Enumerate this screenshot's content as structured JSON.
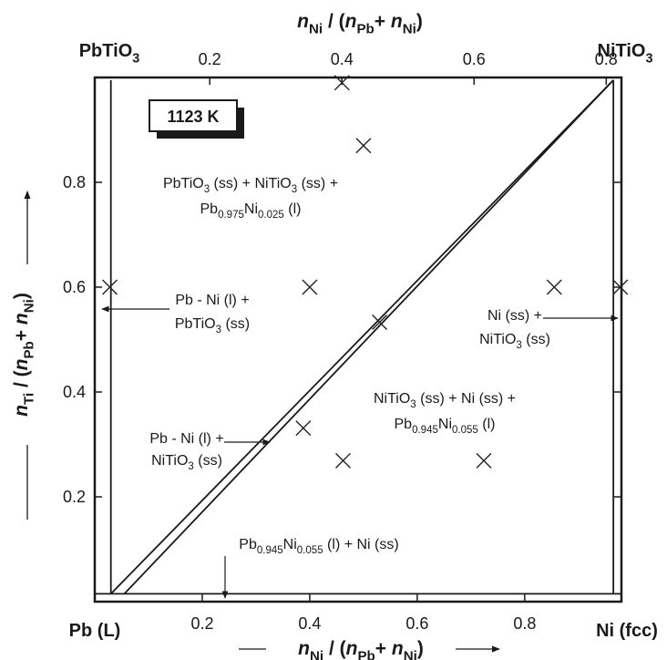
{
  "chart_data": {
    "type": "scatter",
    "xlabel": [
      {
        "text": "n",
        "italic": true
      },
      {
        "text": "Ni",
        "sub": true
      },
      {
        "text": " / ("
      },
      {
        "text": "n",
        "italic": true
      },
      {
        "text": "Pb",
        "sub": true
      },
      {
        "text": "+ "
      },
      {
        "text": "n",
        "italic": true
      },
      {
        "text": "Ni",
        "sub": true
      },
      {
        "text": ")"
      }
    ],
    "x2label": [
      {
        "text": "n",
        "italic": true
      },
      {
        "text": "Ni",
        "sub": true
      },
      {
        "text": " / ("
      },
      {
        "text": "n",
        "italic": true
      },
      {
        "text": "Pb",
        "sub": true
      },
      {
        "text": "+ "
      },
      {
        "text": "n",
        "italic": true
      },
      {
        "text": "Ni",
        "sub": true
      },
      {
        "text": ")"
      }
    ],
    "ylabel": [
      {
        "text": "n",
        "italic": true
      },
      {
        "text": "Ti",
        "sub": true
      },
      {
        "text": " / ("
      },
      {
        "text": "n",
        "italic": true
      },
      {
        "text": "Pb",
        "sub": true
      },
      {
        "text": "+ "
      },
      {
        "text": "n",
        "italic": true
      },
      {
        "text": "Ni",
        "sub": true
      },
      {
        "text": ")"
      }
    ],
    "corner_labels": [
      [
        {
          "text": "PbTiO"
        },
        {
          "text": "3",
          "sub": true
        }
      ],
      [
        {
          "text": "NiTiO"
        },
        {
          "text": "3",
          "sub": true
        }
      ],
      [
        {
          "text": "Pb (L)"
        }
      ],
      [
        {
          "text": "Ni (fcc)"
        }
      ]
    ],
    "x": [
      0.46,
      0.5,
      0.028,
      0.4,
      0.855,
      0.978,
      0.53,
      0.388,
      0.462,
      0.724
    ],
    "y": [
      0.99,
      0.87,
      0.6,
      0.6,
      0.6,
      0.6,
      0.533,
      0.331,
      0.269,
      0.269
    ],
    "color": "#222222",
    "xlim": [
      0,
      0.98
    ],
    "xticks": [
      0.2,
      0.4,
      0.6,
      0.8
    ],
    "x2lim": [
      0.026,
      0.823
    ],
    "x2ticks": [
      0.2,
      0.4,
      0.6,
      0.8
    ],
    "ylim": [
      0,
      1
    ],
    "yticks": [
      0.2,
      0.4,
      0.6,
      0.8
    ],
    "boundaries": [
      {
        "x": [
          0.03,
          0.03
        ],
        "y": [
          0.015,
          0.995
        ]
      },
      {
        "x": [
          0.965,
          0.965
        ],
        "y": [
          0.015,
          0.995
        ]
      },
      {
        "x": [
          0,
          0.98
        ],
        "y": [
          0.015,
          0.015
        ]
      },
      {
        "x": [
          0.03,
          0.965
        ],
        "y": [
          0.015,
          0.995
        ]
      },
      {
        "x": [
          0.055,
          0.965
        ],
        "y": [
          0.015,
          0.995
        ]
      }
    ],
    "annotations": [
      [
        [
          {
            "text": "1123 K"
          }
        ]
      ],
      [
        [
          {
            "text": "PbTiO"
          },
          {
            "text": "3",
            "sub": true
          },
          {
            "text": " (ss) + NiTiO"
          },
          {
            "text": "3",
            "sub": true
          },
          {
            "text": " (ss) +"
          }
        ],
        [
          {
            "text": "Pb"
          },
          {
            "text": "0.975",
            "sub": true
          },
          {
            "text": "Ni"
          },
          {
            "text": "0.025",
            "sub": true
          },
          {
            "text": " (l)"
          }
        ]
      ],
      [
        [
          {
            "text": "Pb - Ni (l) +"
          }
        ],
        [
          {
            "text": "PbTiO"
          },
          {
            "text": "3",
            "sub": true
          },
          {
            "text": " (ss)"
          }
        ]
      ],
      [
        [
          {
            "text": "Ni (ss) +"
          }
        ],
        [
          {
            "text": "NiTiO"
          },
          {
            "text": "3",
            "sub": true
          },
          {
            "text": " (ss)"
          }
        ]
      ],
      [
        [
          {
            "text": "NiTiO"
          },
          {
            "text": "3",
            "sub": true
          },
          {
            "text": " (ss) + Ni (ss) +"
          }
        ],
        [
          {
            "text": "Pb"
          },
          {
            "text": "0.945",
            "sub": true
          },
          {
            "text": "Ni"
          },
          {
            "text": "0.055",
            "sub": true
          },
          {
            "text": " (l)"
          }
        ]
      ],
      [
        [
          {
            "text": "Pb - Ni (l) +"
          }
        ],
        [
          {
            "text": "NiTiO"
          },
          {
            "text": "3",
            "sub": true
          },
          {
            "text": " (ss)"
          }
        ]
      ],
      [
        [
          {
            "text": "Pb"
          },
          {
            "text": "0.945",
            "sub": true
          },
          {
            "text": "Ni"
          },
          {
            "text": "0.055",
            "sub": true
          },
          {
            "text": " (l) + Ni (ss)"
          }
        ]
      ]
    ]
  }
}
